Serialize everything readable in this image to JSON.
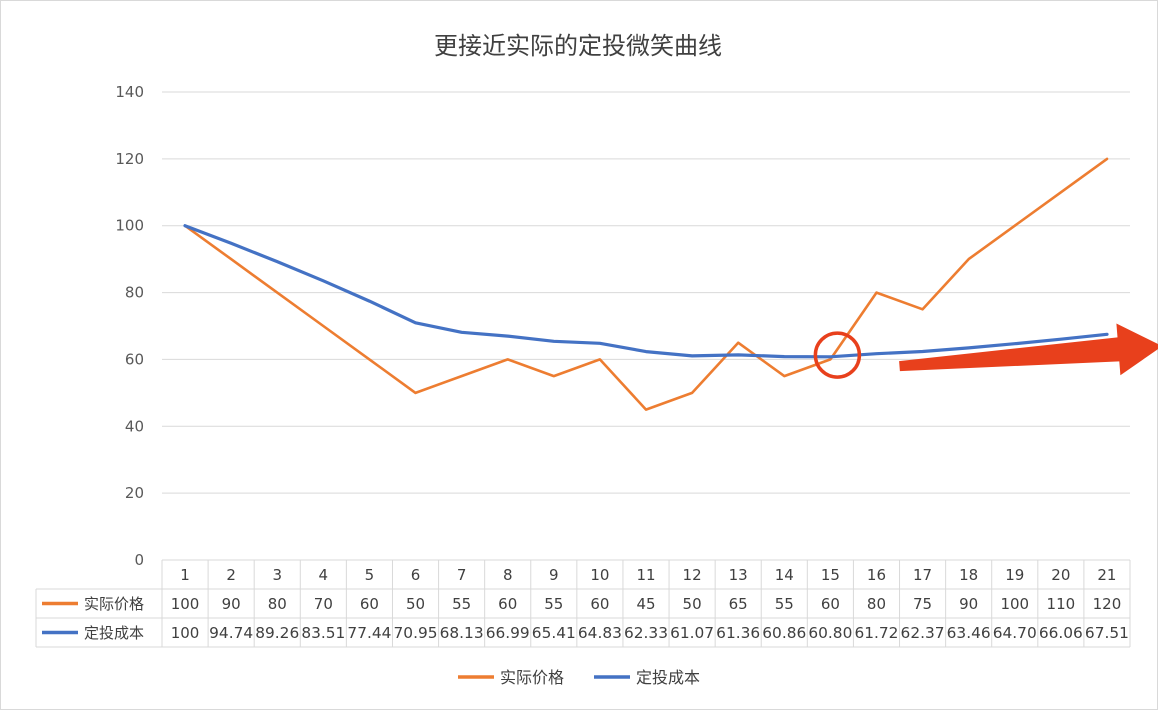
{
  "chart_data": {
    "type": "line",
    "title": "更接近实际的定投微笑曲线",
    "categories": [
      "1",
      "2",
      "3",
      "4",
      "5",
      "6",
      "7",
      "8",
      "9",
      "10",
      "11",
      "12",
      "13",
      "14",
      "15",
      "16",
      "17",
      "18",
      "19",
      "20",
      "21"
    ],
    "ylim": [
      0,
      140
    ],
    "yticks": [
      "0",
      "20",
      "40",
      "60",
      "80",
      "100",
      "120",
      "140"
    ],
    "grid": true,
    "legend": "bottom",
    "series": [
      {
        "name": "实际价格",
        "color": "#ED7D31",
        "values": [
          100,
          90,
          80,
          70,
          60,
          50,
          55,
          60,
          55,
          60,
          45,
          50,
          65,
          55,
          60,
          80,
          75,
          90,
          100,
          110,
          120
        ],
        "labels": [
          "100",
          "90",
          "80",
          "70",
          "60",
          "50",
          "55",
          "60",
          "55",
          "60",
          "45",
          "50",
          "65",
          "55",
          "60",
          "80",
          "75",
          "90",
          "100",
          "110",
          "120"
        ]
      },
      {
        "name": "定投成本",
        "color": "#4472C4",
        "values": [
          100,
          94.74,
          89.26,
          83.51,
          77.44,
          70.95,
          68.13,
          66.99,
          65.41,
          64.83,
          62.33,
          61.07,
          61.36,
          60.86,
          60.8,
          61.72,
          62.37,
          63.46,
          64.7,
          66.06,
          67.51
        ],
        "labels": [
          "100",
          "94.74",
          "89.26",
          "83.51",
          "77.44",
          "70.95",
          "68.13",
          "66.99",
          "65.41",
          "64.83",
          "62.33",
          "61.07",
          "61.36",
          "60.86",
          "60.80",
          "61.72",
          "62.37",
          "63.46",
          "64.70",
          "66.06",
          "67.51"
        ]
      }
    ],
    "annotations": {
      "circle_marker": {
        "category": "15",
        "value": 61,
        "color": "#E8401C"
      },
      "arrow": {
        "from_category": "16.5",
        "from_value": 58,
        "to_category": "22.2",
        "to_value": 64,
        "color": "#E8401C"
      }
    }
  }
}
